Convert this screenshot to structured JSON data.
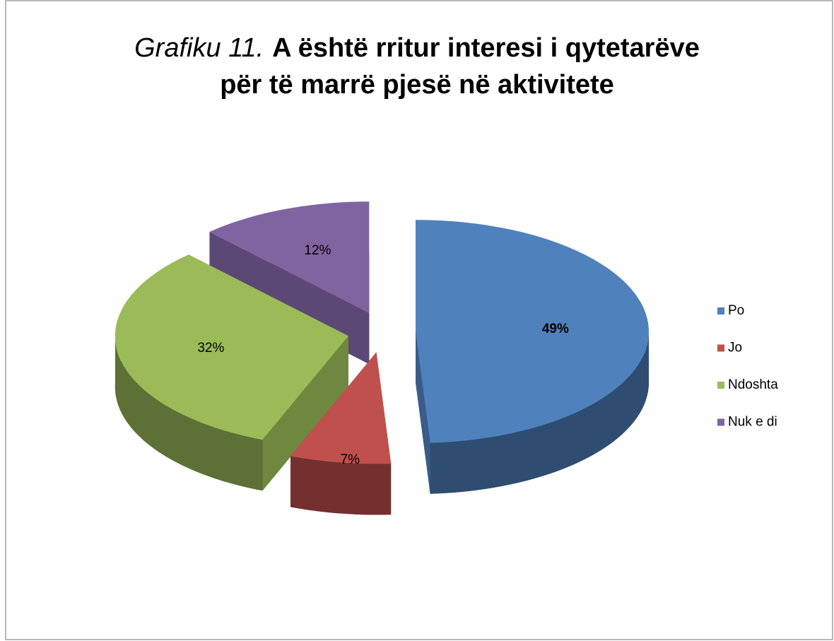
{
  "chart_data": {
    "type": "pie",
    "title": [
      "Grafiku 11.",
      "A është rritur interesi i qytetarëve",
      "për të marrë pjesë në aktivitete"
    ],
    "categories": [
      "Po",
      "Jo",
      "Ndoshta",
      "Nuk e di"
    ],
    "values": [
      49,
      7,
      32,
      12
    ],
    "value_labels": [
      "49%",
      "7%",
      "32%",
      "12%"
    ],
    "colors": [
      "#4f81bd",
      "#c0504d",
      "#9bbb59",
      "#8064a2"
    ],
    "legend": "right"
  }
}
